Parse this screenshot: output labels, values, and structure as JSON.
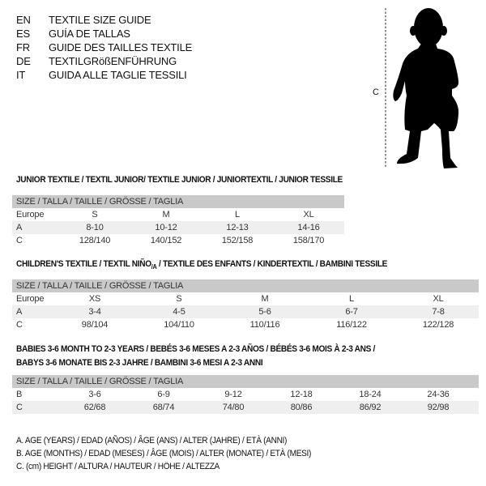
{
  "languages": [
    {
      "code": "EN",
      "title": "TEXTILE SIZE GUIDE"
    },
    {
      "code": "ES",
      "title": "GUÍA DE TALLAS"
    },
    {
      "code": "FR",
      "title": "GUIDE DES TAILLES TEXTILE"
    },
    {
      "code": "DE",
      "title": "TEXTILGRößENFÜHRUNG"
    },
    {
      "code": "IT",
      "title": "GUIDA ALLE TAGLIE TESSILI"
    }
  ],
  "figure": {
    "measure_label": "C",
    "icon": "baby-silhouette"
  },
  "junior": {
    "title": "JUNIOR TEXTILE / TEXTIL JUNIOR/ TEXTILE JUNIOR / JUNIORTEXTIL / JUNIOR TESSILE",
    "header": "SIZE / TALLA / TAILLE / GRÖSSE / TAGLIA",
    "rows": [
      {
        "label": "Europe",
        "values": [
          "S",
          "M",
          "L",
          "XL"
        ]
      },
      {
        "label": "A",
        "values": [
          "8-10",
          "10-12",
          "12-13",
          "14-16"
        ]
      },
      {
        "label": "C",
        "values": [
          "128/140",
          "140/152",
          "152/158",
          "158/170"
        ]
      }
    ]
  },
  "children": {
    "title_main": "CHILDREN'S TEXTILE / TEXTIL NIÑO",
    "title_sub": "/A",
    "title_rest": " / TEXTILE DES ENFANTS / KINDERTEXTIL / BAMBINI TESSILE",
    "header": "SIZE / TALLA / TAILLE / GRÖSSE / TAGLIA",
    "rows": [
      {
        "label": "Europe",
        "values": [
          "XS",
          "S",
          "M",
          "L",
          "XL"
        ]
      },
      {
        "label": "A",
        "values": [
          "3-4",
          "4-5",
          "5-6",
          "6-7",
          "7-8"
        ]
      },
      {
        "label": "C",
        "values": [
          "98/104",
          "104/110",
          "110/116",
          "116/122",
          "122/128"
        ]
      }
    ]
  },
  "babies": {
    "title_line1": "BABIES 3-6 MONTH TO 2-3 YEARS / BEBÉS 3-6 MESES A 2-3 AÑOS / BÉBÉS 3-6 MOIS À 2-3 ANS /",
    "title_line2": "BABYS 3-6 MONATE BIS 2-3 JAHRE / BAMBINI 3-6 MESI A 2-3 ANNI",
    "header": "SIZE / TALLA / TAILLE / GRÖSSE / TAGLIA",
    "rows": [
      {
        "label": "B",
        "values": [
          "3-6",
          "6-9",
          "9-12",
          "12-18",
          "18-24",
          "24-36"
        ]
      },
      {
        "label": "C",
        "values": [
          "62/68",
          "68/74",
          "74/80",
          "80/86",
          "86/92",
          "92/98"
        ]
      }
    ]
  },
  "legend": [
    "A. AGE (YEARS) / EDAD (AÑOS) / ÂGE (ANS) / ALTER (JAHRE) / ETÀ (ANNI)",
    "B. AGE (MONTHS) / EDAD (MESES) / ÂGE (MOIS) / ALTER (MONATE) / ETÀ (MESI)",
    "C. (cm) HEIGHT / ALTURA / HAUTEUR / HÖHE / ALTEZZA"
  ]
}
